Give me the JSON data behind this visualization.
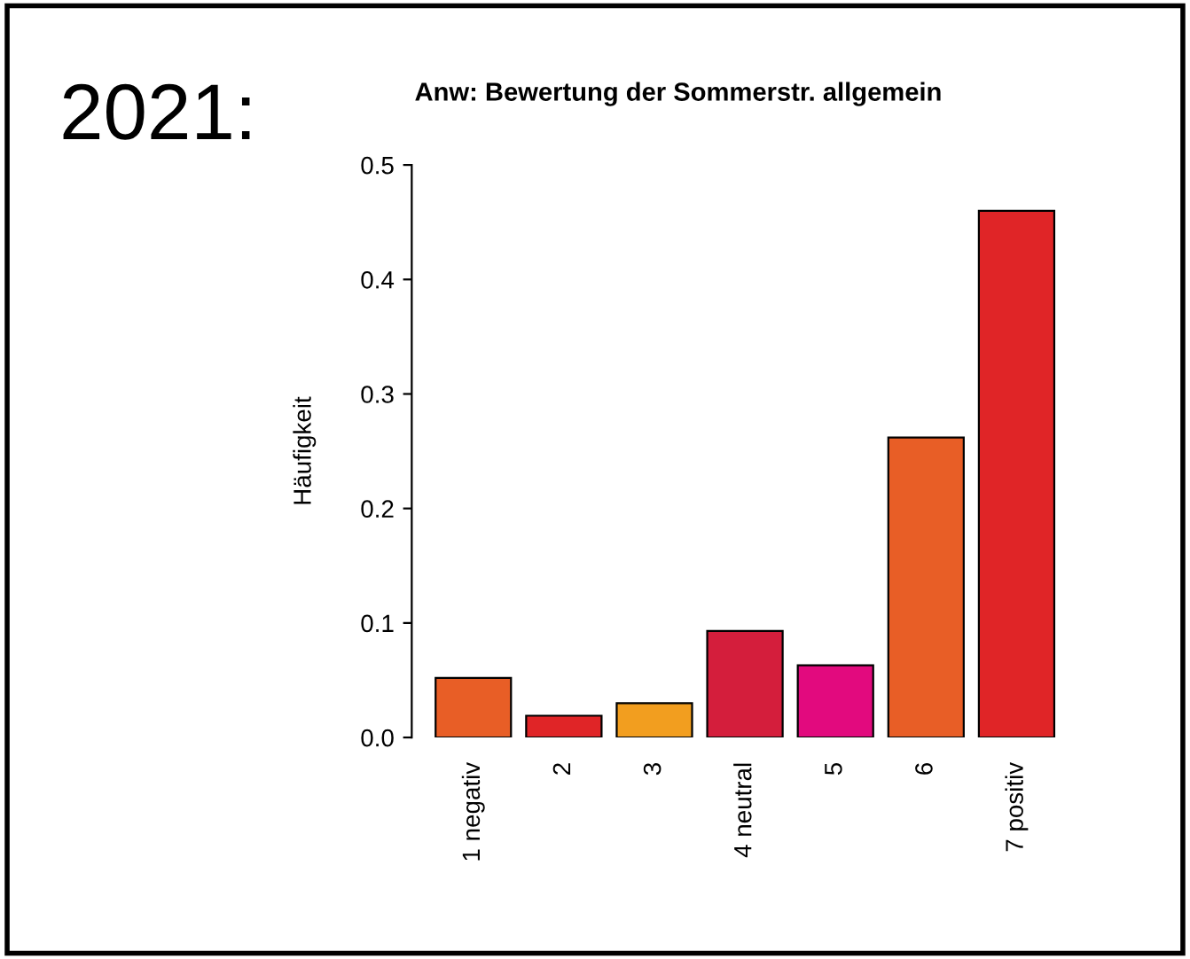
{
  "chart_data": {
    "type": "bar",
    "title": "Anw: Bewertung der Sommerstr. allgemein",
    "ylabel": "Häufigkeit",
    "annotations": [
      "2021:"
    ],
    "categories": [
      "1 negativ",
      "2",
      "3",
      "4 neutral",
      "5",
      "6",
      "7 positiv"
    ],
    "values": [
      0.052,
      0.019,
      0.03,
      0.093,
      0.063,
      0.262,
      0.46
    ],
    "colors": [
      "#e85e26",
      "#e02527",
      "#f29e1f",
      "#d41e3c",
      "#e20a7e",
      "#e85e26",
      "#e02527"
    ],
    "ylim": [
      0,
      0.5
    ],
    "yticks": [
      {
        "value": 0,
        "label": "0.0"
      },
      0.1,
      0.2,
      0.3,
      0.4,
      0.5
    ],
    "grid": false,
    "legend": false
  }
}
